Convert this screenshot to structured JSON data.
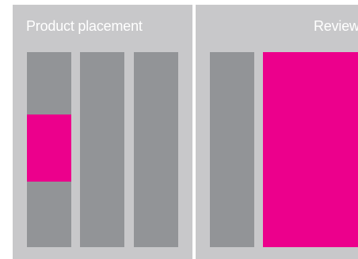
{
  "panels": {
    "left": {
      "title": "Product placement"
    },
    "right": {
      "title": "Review"
    }
  },
  "colors": {
    "panel_background": "#c8c8ca",
    "column": "#929497",
    "highlight": "#ec008c",
    "title_text": "#ffffff"
  }
}
